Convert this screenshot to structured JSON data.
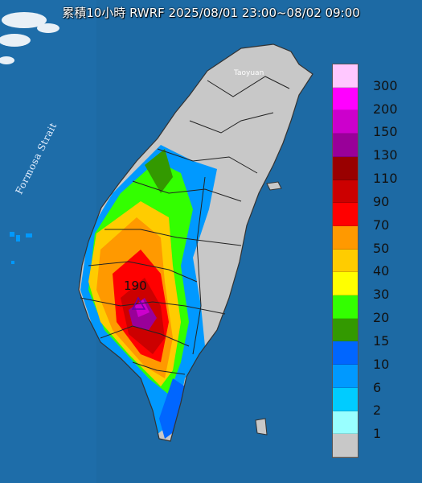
{
  "title": "累積10小時 RWRF 2025/08/01 23:00~08/02 09:00",
  "labels": {
    "strait": "Formosa Strait",
    "city": "Taoyuan",
    "peak_value": "190"
  },
  "legend": {
    "values": [
      "300",
      "200",
      "150",
      "130",
      "110",
      "90",
      "70",
      "50",
      "40",
      "30",
      "20",
      "15",
      "10",
      "6",
      "2",
      "1"
    ],
    "colors": [
      "#ffc8ff",
      "#ff00ff",
      "#cc00cc",
      "#990099",
      "#990000",
      "#cc0000",
      "#ff0000",
      "#ff9900",
      "#ffcc00",
      "#ffff00",
      "#33ff00",
      "#339900",
      "#0066ff",
      "#0099ff",
      "#00ccff",
      "#99ffff",
      "#c8c8c8"
    ]
  }
}
